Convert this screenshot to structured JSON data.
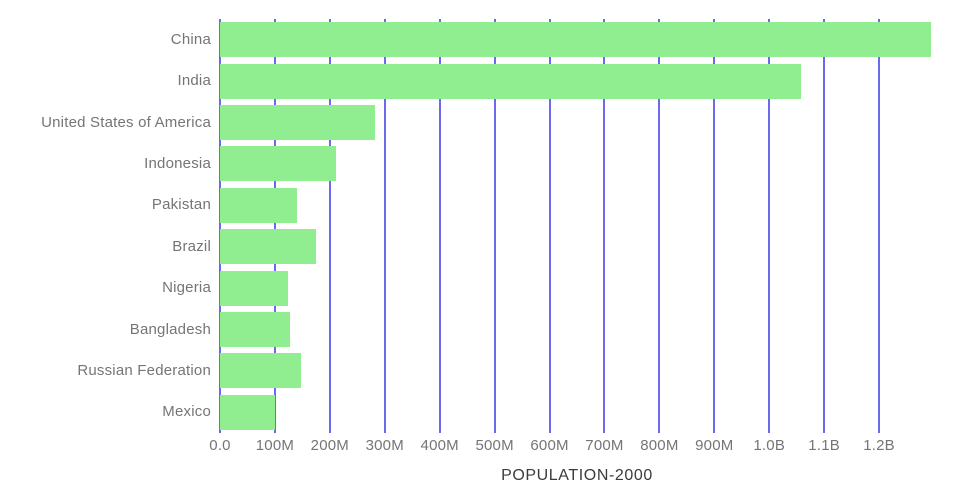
{
  "chart_data": {
    "type": "bar",
    "orientation": "horizontal",
    "title": "POPULATION-2000",
    "categories": [
      "China",
      "India",
      "United States of America",
      "Indonesia",
      "Pakistan",
      "Brazil",
      "Nigeria",
      "Bangladesh",
      "Russian Federation",
      "Mexico"
    ],
    "values": [
      1295000000,
      1057000000,
      282000000,
      211000000,
      141000000,
      175000000,
      123000000,
      128000000,
      147000000,
      100000000
    ],
    "xlabel": "POPULATION-2000",
    "ylabel": "",
    "xlim": [
      0,
      1300000000
    ],
    "x_ticks": [
      {
        "value": 0,
        "label": "0.0"
      },
      {
        "value": 100000000,
        "label": "100M"
      },
      {
        "value": 200000000,
        "label": "200M"
      },
      {
        "value": 300000000,
        "label": "300M"
      },
      {
        "value": 400000000,
        "label": "400M"
      },
      {
        "value": 500000000,
        "label": "500M"
      },
      {
        "value": 600000000,
        "label": "600M"
      },
      {
        "value": 700000000,
        "label": "700M"
      },
      {
        "value": 800000000,
        "label": "800M"
      },
      {
        "value": 900000000,
        "label": "900M"
      },
      {
        "value": 1000000000,
        "label": "1.0B"
      },
      {
        "value": 1100000000,
        "label": "1.1B"
      },
      {
        "value": 1200000000,
        "label": "1.2B"
      }
    ],
    "grid": true,
    "legend": false,
    "colors": {
      "bar": "#90EE90",
      "gridline": "#6a6af0",
      "tick_label": "#757575",
      "category_label": "#757575",
      "title": "#3b3b3b",
      "background": "#ffffff"
    }
  }
}
